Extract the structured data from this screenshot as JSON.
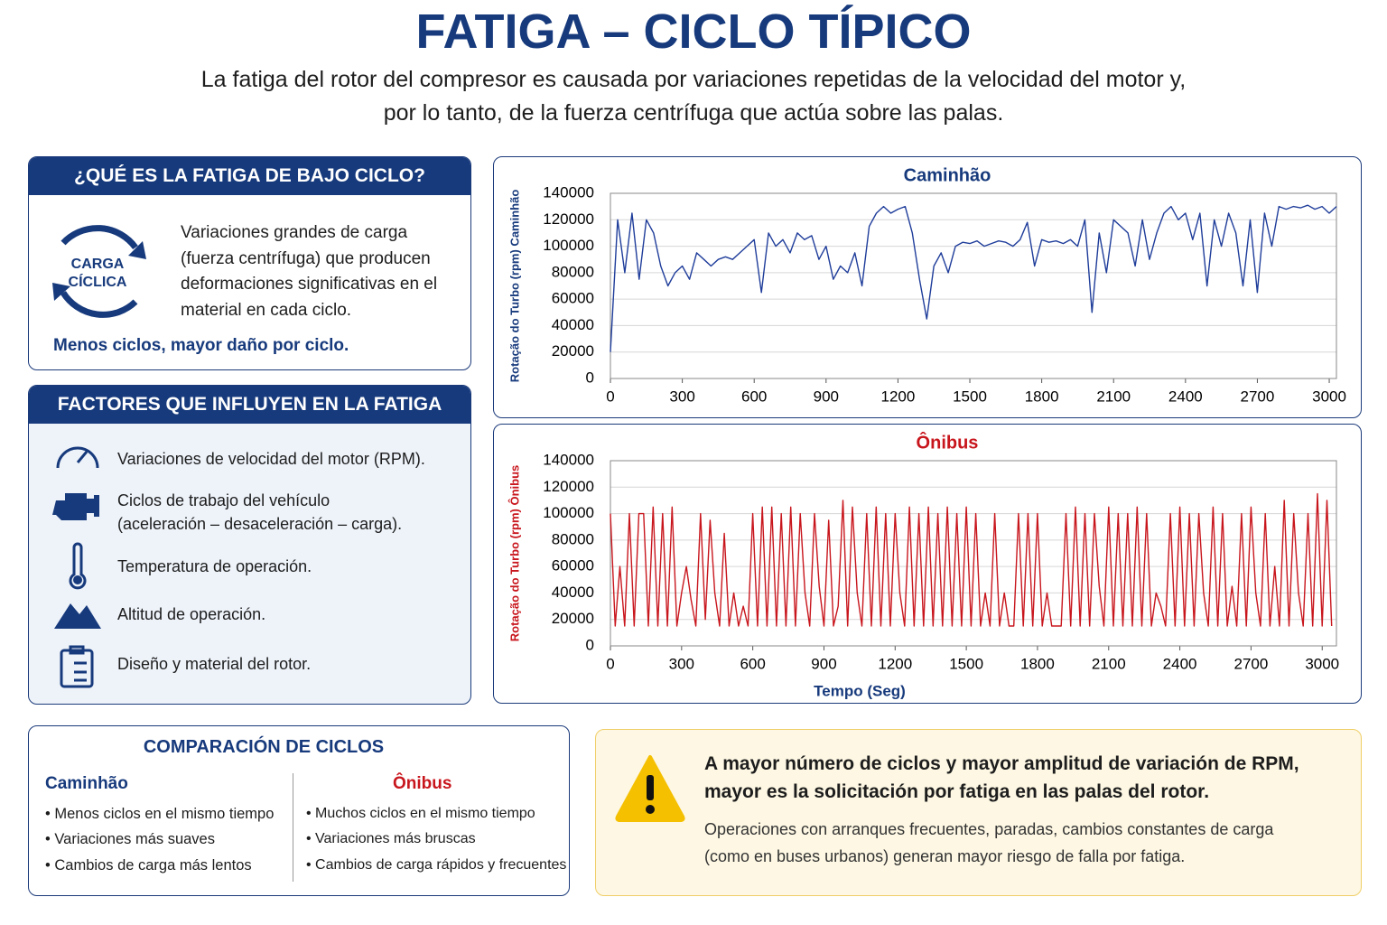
{
  "header": {
    "title": "FATIGA – CICLO TÍPICO",
    "subtitle": [
      "La fatiga del rotor del compresor es causada por variaciones repetidas de la velocidad del motor y,",
      "por lo tanto, de la fuerza centrífuga que actúa sobre las palas."
    ]
  },
  "low_cycle": {
    "title": "¿QUÉ ES LA FATIGA DE BAJO CICLO?",
    "badge": [
      "CARGA",
      "CÍCLICA"
    ],
    "text": [
      "Variaciones grandes de carga",
      "(fuerza centrífuga) que producen",
      "deformaciones significativas en el",
      "material en cada ciclo."
    ],
    "emphasis": "Menos ciclos, mayor daño por ciclo."
  },
  "factors": {
    "title": "FACTORES QUE INFLUYEN EN LA FATIGA",
    "items": [
      [
        "Variaciones de velocidad del motor (RPM)."
      ],
      [
        "Ciclos de trabajo del vehículo",
        "(aceleración – desaceleración – carga)."
      ],
      [
        "Temperatura de operación."
      ],
      [
        "Altitud de operación."
      ],
      [
        "Diseño y material del rotor."
      ]
    ]
  },
  "comparison": {
    "title": "COMPARACIÓN DE CICLOS",
    "columns": [
      {
        "name": "Caminhão",
        "items": [
          "Menos ciclos en el mismo tiempo",
          "Variaciones más suaves",
          "Cambios de carga más lentos"
        ]
      },
      {
        "name": "Ônibus",
        "items": [
          "Muchos ciclos en el mismo tiempo",
          "Variaciones más bruscas",
          "Cambios de carga rápidos y frecuentes"
        ]
      }
    ]
  },
  "warning": {
    "heading": [
      "A mayor número de ciclos y mayor amplitud de variación de RPM,",
      "mayor es la solicitación por fatiga en las palas del rotor."
    ],
    "text": [
      "Operaciones con arranques frecuentes, paradas, cambios constantes de carga",
      "(como en buses urbanos) generan mayor riesgo de falla por fatiga."
    ]
  },
  "chart_data": [
    {
      "type": "line",
      "title": "Caminhão",
      "ylabel": "Rotação do Turbo (rpm) Caminhão",
      "color": "#1f3d9a",
      "grid": true,
      "xlim": [
        0,
        3030
      ],
      "xticks": [
        0,
        300,
        600,
        900,
        1200,
        1500,
        1800,
        2100,
        2400,
        2700,
        3000
      ],
      "ylim": [
        0,
        140000
      ],
      "yticks": [
        0,
        20000,
        40000,
        60000,
        80000,
        100000,
        120000,
        140000
      ],
      "x": [
        0,
        30,
        60,
        90,
        120,
        150,
        180,
        210,
        240,
        270,
        300,
        330,
        360,
        390,
        420,
        450,
        480,
        510,
        540,
        570,
        600,
        630,
        660,
        690,
        720,
        750,
        780,
        810,
        840,
        870,
        900,
        930,
        960,
        990,
        1020,
        1050,
        1080,
        1110,
        1140,
        1170,
        1200,
        1230,
        1260,
        1290,
        1320,
        1350,
        1380,
        1410,
        1440,
        1470,
        1500,
        1530,
        1560,
        1590,
        1620,
        1650,
        1680,
        1710,
        1740,
        1770,
        1800,
        1830,
        1860,
        1890,
        1920,
        1950,
        1980,
        2010,
        2040,
        2070,
        2100,
        2130,
        2160,
        2190,
        2220,
        2250,
        2280,
        2310,
        2340,
        2370,
        2400,
        2430,
        2460,
        2490,
        2520,
        2550,
        2580,
        2610,
        2640,
        2670,
        2700,
        2730,
        2760,
        2790,
        2820,
        2850,
        2880,
        2910,
        2940,
        2970,
        3000,
        3030
      ],
      "values": [
        20000,
        120000,
        80000,
        125000,
        75000,
        120000,
        110000,
        85000,
        70000,
        80000,
        85000,
        75000,
        95000,
        90000,
        85000,
        90000,
        92000,
        90000,
        95000,
        100000,
        105000,
        65000,
        110000,
        100000,
        105000,
        95000,
        110000,
        105000,
        108000,
        90000,
        100000,
        75000,
        85000,
        80000,
        95000,
        70000,
        115000,
        125000,
        130000,
        125000,
        128000,
        130000,
        110000,
        75000,
        45000,
        85000,
        95000,
        80000,
        100000,
        103000,
        102000,
        104000,
        100000,
        102000,
        104000,
        103000,
        100000,
        105000,
        118000,
        85000,
        105000,
        103000,
        104000,
        102000,
        105000,
        100000,
        120000,
        50000,
        110000,
        80000,
        120000,
        115000,
        110000,
        85000,
        120000,
        90000,
        110000,
        125000,
        130000,
        120000,
        125000,
        105000,
        125000,
        70000,
        120000,
        100000,
        125000,
        110000,
        70000,
        120000,
        65000,
        125000,
        100000,
        130000,
        128000,
        130000,
        129000,
        131000,
        128000,
        130000,
        125000,
        130000
      ]
    },
    {
      "type": "line",
      "title": "Ônibus",
      "ylabel": "Rotação do Turbo (rpm) Ônibus",
      "xlabel": "Tempo (Seg)",
      "color": "#c8161d",
      "grid": true,
      "xlim": [
        0,
        3060
      ],
      "xticks": [
        0,
        300,
        600,
        900,
        1200,
        1500,
        1800,
        2100,
        2400,
        2700,
        3000
      ],
      "ylim": [
        0,
        140000
      ],
      "yticks": [
        0,
        20000,
        40000,
        60000,
        80000,
        100000,
        120000,
        140000
      ],
      "x": [
        0,
        20,
        40,
        60,
        80,
        100,
        120,
        140,
        160,
        180,
        200,
        220,
        240,
        260,
        280,
        300,
        320,
        340,
        360,
        380,
        400,
        420,
        440,
        460,
        480,
        500,
        520,
        540,
        560,
        580,
        600,
        620,
        640,
        660,
        680,
        700,
        720,
        740,
        760,
        780,
        800,
        820,
        840,
        860,
        880,
        900,
        920,
        940,
        960,
        980,
        1000,
        1020,
        1040,
        1060,
        1080,
        1100,
        1120,
        1140,
        1160,
        1180,
        1200,
        1220,
        1240,
        1260,
        1280,
        1300,
        1320,
        1340,
        1360,
        1380,
        1400,
        1420,
        1440,
        1460,
        1480,
        1500,
        1520,
        1540,
        1560,
        1580,
        1600,
        1620,
        1640,
        1660,
        1680,
        1700,
        1720,
        1740,
        1760,
        1780,
        1800,
        1820,
        1840,
        1860,
        1880,
        1900,
        1920,
        1940,
        1960,
        1980,
        2000,
        2020,
        2040,
        2060,
        2080,
        2100,
        2120,
        2140,
        2160,
        2180,
        2200,
        2220,
        2240,
        2260,
        2280,
        2300,
        2320,
        2340,
        2360,
        2380,
        2400,
        2420,
        2440,
        2460,
        2480,
        2500,
        2520,
        2540,
        2560,
        2580,
        2600,
        2620,
        2640,
        2660,
        2680,
        2700,
        2720,
        2740,
        2760,
        2780,
        2800,
        2820,
        2840,
        2860,
        2880,
        2900,
        2920,
        2940,
        2960,
        2980,
        3000,
        3020,
        3040
      ],
      "values": [
        100000,
        15000,
        60000,
        15000,
        100000,
        15000,
        100000,
        100000,
        15000,
        105000,
        15000,
        100000,
        15000,
        105000,
        15000,
        40000,
        60000,
        35000,
        15000,
        100000,
        20000,
        95000,
        40000,
        15000,
        85000,
        15000,
        40000,
        15000,
        30000,
        15000,
        100000,
        15000,
        105000,
        15000,
        105000,
        15000,
        100000,
        15000,
        105000,
        15000,
        100000,
        40000,
        15000,
        100000,
        45000,
        15000,
        95000,
        15000,
        30000,
        110000,
        15000,
        105000,
        40000,
        15000,
        100000,
        15000,
        105000,
        15000,
        100000,
        15000,
        100000,
        40000,
        15000,
        105000,
        15000,
        100000,
        15000,
        105000,
        15000,
        100000,
        15000,
        105000,
        15000,
        100000,
        15000,
        105000,
        15000,
        100000,
        15000,
        40000,
        15000,
        100000,
        15000,
        40000,
        15000,
        15000,
        100000,
        15000,
        100000,
        15000,
        100000,
        15000,
        40000,
        15000,
        15000,
        15000,
        100000,
        15000,
        105000,
        15000,
        100000,
        15000,
        100000,
        45000,
        15000,
        105000,
        15000,
        100000,
        15000,
        100000,
        15000,
        105000,
        15000,
        100000,
        15000,
        40000,
        30000,
        15000,
        100000,
        15000,
        105000,
        15000,
        100000,
        15000,
        100000,
        40000,
        15000,
        105000,
        15000,
        100000,
        15000,
        45000,
        15000,
        100000,
        15000,
        105000,
        40000,
        15000,
        100000,
        15000,
        60000,
        15000,
        110000,
        15000,
        100000,
        40000,
        15000,
        100000,
        15000,
        115000,
        15000,
        110000,
        15000
      ]
    }
  ]
}
